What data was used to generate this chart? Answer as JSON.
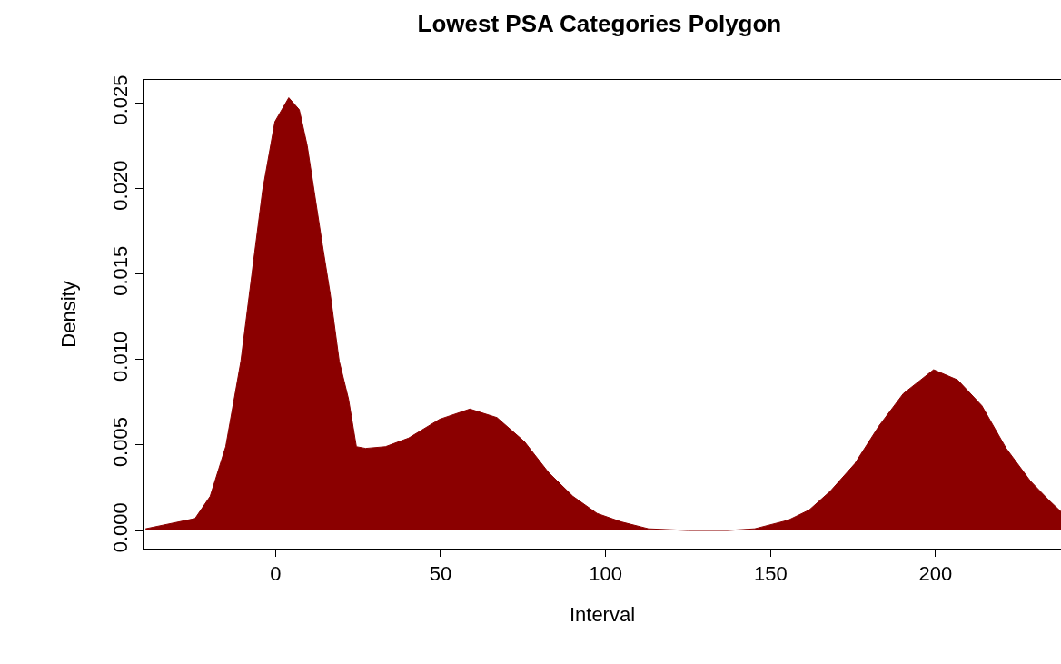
{
  "chart_data": {
    "type": "area",
    "title": "Lowest PSA Categories Polygon",
    "xlabel": "Interval",
    "ylabel": "Density",
    "x": [
      -39.4,
      -24.4,
      -19.8,
      -15.1,
      -10.5,
      -6.3,
      -3.9,
      -0.2,
      4.0,
      7.2,
      9.6,
      11.9,
      14.2,
      16.6,
      19.3,
      22.1,
      24.5,
      27.3,
      33.3,
      40.3,
      49.7,
      58.9,
      67.1,
      75.4,
      82.7,
      90.1,
      97.4,
      104.8,
      113,
      125,
      137,
      145.2,
      155.3,
      161.7,
      168.1,
      175.5,
      182.8,
      190.2,
      199.4,
      206.7,
      214,
      221.4,
      228.7,
      234.2,
      238
    ],
    "series": [
      {
        "color": "#8b0000",
        "values": [
          0.0001,
          0.0007,
          0.002,
          0.0049,
          0.0099,
          0.0163,
          0.0199,
          0.0239,
          0.0253,
          0.0246,
          0.0225,
          0.0196,
          0.0167,
          0.0138,
          0.0099,
          0.0077,
          0.0049,
          0.0048,
          0.0049,
          0.0054,
          0.0065,
          0.0071,
          0.0066,
          0.0052,
          0.0034,
          0.002,
          0.001,
          0.0005,
          0.0001,
          0.0,
          0.0,
          0.0001,
          0.0006,
          0.0012,
          0.0023,
          0.0039,
          0.0061,
          0.008,
          0.0094,
          0.0088,
          0.0073,
          0.0048,
          0.0029,
          0.0018,
          0.0011
        ]
      }
    ],
    "xlim": [
      -40,
      238
    ],
    "ylim": [
      -0.00106,
      0.02634
    ],
    "xticks": [
      0,
      50,
      100,
      150,
      200
    ],
    "yticks": [
      {
        "value": 0,
        "label": "0.000"
      },
      {
        "value": 0.005,
        "label": "0.005"
      },
      {
        "value": 0.01,
        "label": "0.010"
      },
      {
        "value": 0.015,
        "label": "0.015"
      },
      {
        "value": 0.02,
        "label": "0.020"
      },
      {
        "value": 0.025,
        "label": "0.025"
      }
    ],
    "line_style": "solid"
  }
}
